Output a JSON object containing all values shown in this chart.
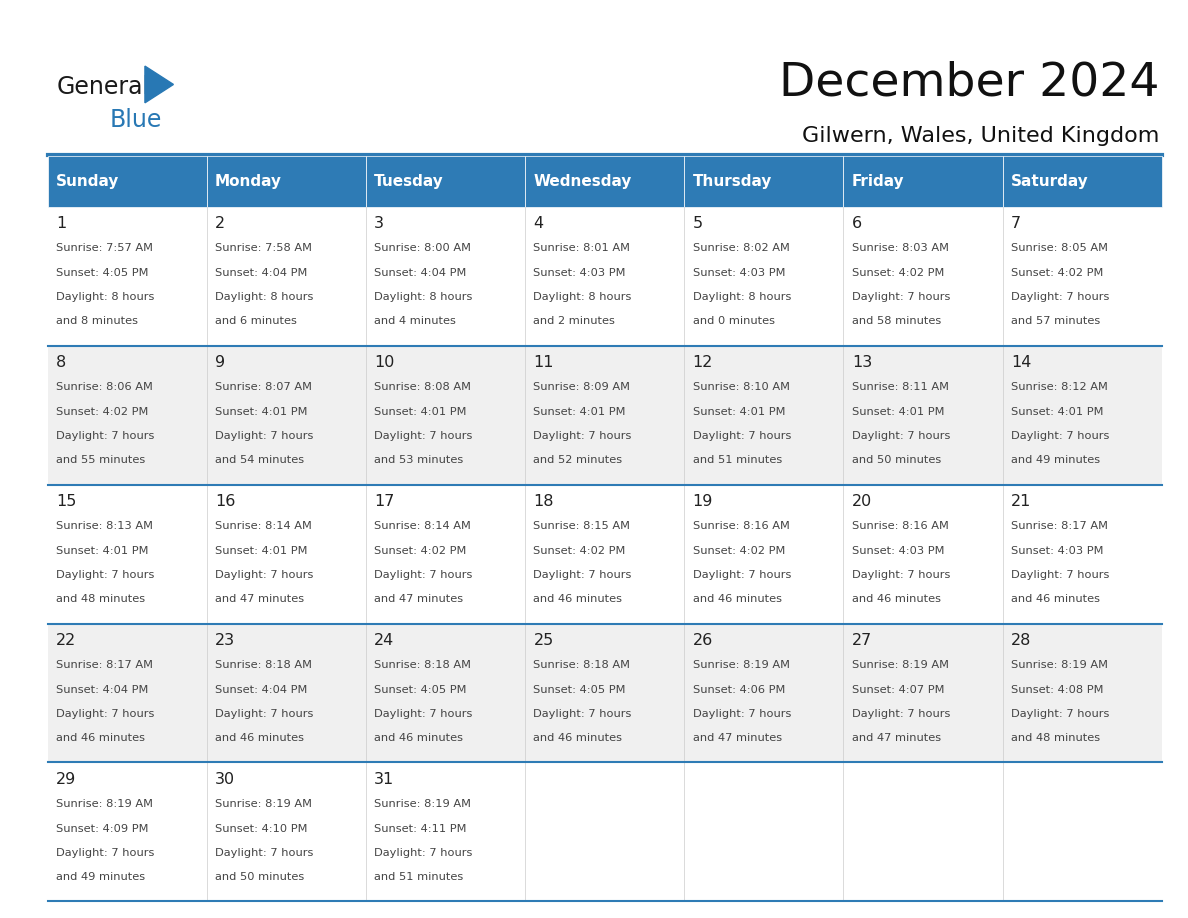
{
  "title": "December 2024",
  "subtitle": "Gilwern, Wales, United Kingdom",
  "header_bg_color": "#2E7BB5",
  "header_text_color": "#FFFFFF",
  "days_of_week": [
    "Sunday",
    "Monday",
    "Tuesday",
    "Wednesday",
    "Thursday",
    "Friday",
    "Saturday"
  ],
  "row_colors": [
    "#FFFFFF",
    "#F0F0F0"
  ],
  "separator_color": "#2E7BB5",
  "text_color": "#444444",
  "day_num_color": "#222222",
  "calendar_data": [
    [
      {
        "day": 1,
        "sunrise": "7:57 AM",
        "sunset": "4:05 PM",
        "daylight": "8 hours and 8 minutes"
      },
      {
        "day": 2,
        "sunrise": "7:58 AM",
        "sunset": "4:04 PM",
        "daylight": "8 hours and 6 minutes"
      },
      {
        "day": 3,
        "sunrise": "8:00 AM",
        "sunset": "4:04 PM",
        "daylight": "8 hours and 4 minutes"
      },
      {
        "day": 4,
        "sunrise": "8:01 AM",
        "sunset": "4:03 PM",
        "daylight": "8 hours and 2 minutes"
      },
      {
        "day": 5,
        "sunrise": "8:02 AM",
        "sunset": "4:03 PM",
        "daylight": "8 hours and 0 minutes"
      },
      {
        "day": 6,
        "sunrise": "8:03 AM",
        "sunset": "4:02 PM",
        "daylight": "7 hours and 58 minutes"
      },
      {
        "day": 7,
        "sunrise": "8:05 AM",
        "sunset": "4:02 PM",
        "daylight": "7 hours and 57 minutes"
      }
    ],
    [
      {
        "day": 8,
        "sunrise": "8:06 AM",
        "sunset": "4:02 PM",
        "daylight": "7 hours and 55 minutes"
      },
      {
        "day": 9,
        "sunrise": "8:07 AM",
        "sunset": "4:01 PM",
        "daylight": "7 hours and 54 minutes"
      },
      {
        "day": 10,
        "sunrise": "8:08 AM",
        "sunset": "4:01 PM",
        "daylight": "7 hours and 53 minutes"
      },
      {
        "day": 11,
        "sunrise": "8:09 AM",
        "sunset": "4:01 PM",
        "daylight": "7 hours and 52 minutes"
      },
      {
        "day": 12,
        "sunrise": "8:10 AM",
        "sunset": "4:01 PM",
        "daylight": "7 hours and 51 minutes"
      },
      {
        "day": 13,
        "sunrise": "8:11 AM",
        "sunset": "4:01 PM",
        "daylight": "7 hours and 50 minutes"
      },
      {
        "day": 14,
        "sunrise": "8:12 AM",
        "sunset": "4:01 PM",
        "daylight": "7 hours and 49 minutes"
      }
    ],
    [
      {
        "day": 15,
        "sunrise": "8:13 AM",
        "sunset": "4:01 PM",
        "daylight": "7 hours and 48 minutes"
      },
      {
        "day": 16,
        "sunrise": "8:14 AM",
        "sunset": "4:01 PM",
        "daylight": "7 hours and 47 minutes"
      },
      {
        "day": 17,
        "sunrise": "8:14 AM",
        "sunset": "4:02 PM",
        "daylight": "7 hours and 47 minutes"
      },
      {
        "day": 18,
        "sunrise": "8:15 AM",
        "sunset": "4:02 PM",
        "daylight": "7 hours and 46 minutes"
      },
      {
        "day": 19,
        "sunrise": "8:16 AM",
        "sunset": "4:02 PM",
        "daylight": "7 hours and 46 minutes"
      },
      {
        "day": 20,
        "sunrise": "8:16 AM",
        "sunset": "4:03 PM",
        "daylight": "7 hours and 46 minutes"
      },
      {
        "day": 21,
        "sunrise": "8:17 AM",
        "sunset": "4:03 PM",
        "daylight": "7 hours and 46 minutes"
      }
    ],
    [
      {
        "day": 22,
        "sunrise": "8:17 AM",
        "sunset": "4:04 PM",
        "daylight": "7 hours and 46 minutes"
      },
      {
        "day": 23,
        "sunrise": "8:18 AM",
        "sunset": "4:04 PM",
        "daylight": "7 hours and 46 minutes"
      },
      {
        "day": 24,
        "sunrise": "8:18 AM",
        "sunset": "4:05 PM",
        "daylight": "7 hours and 46 minutes"
      },
      {
        "day": 25,
        "sunrise": "8:18 AM",
        "sunset": "4:05 PM",
        "daylight": "7 hours and 46 minutes"
      },
      {
        "day": 26,
        "sunrise": "8:19 AM",
        "sunset": "4:06 PM",
        "daylight": "7 hours and 47 minutes"
      },
      {
        "day": 27,
        "sunrise": "8:19 AM",
        "sunset": "4:07 PM",
        "daylight": "7 hours and 47 minutes"
      },
      {
        "day": 28,
        "sunrise": "8:19 AM",
        "sunset": "4:08 PM",
        "daylight": "7 hours and 48 minutes"
      }
    ],
    [
      {
        "day": 29,
        "sunrise": "8:19 AM",
        "sunset": "4:09 PM",
        "daylight": "7 hours and 49 minutes"
      },
      {
        "day": 30,
        "sunrise": "8:19 AM",
        "sunset": "4:10 PM",
        "daylight": "7 hours and 50 minutes"
      },
      {
        "day": 31,
        "sunrise": "8:19 AM",
        "sunset": "4:11 PM",
        "daylight": "7 hours and 51 minutes"
      },
      null,
      null,
      null,
      null
    ]
  ],
  "fig_width": 11.88,
  "fig_height": 9.18
}
